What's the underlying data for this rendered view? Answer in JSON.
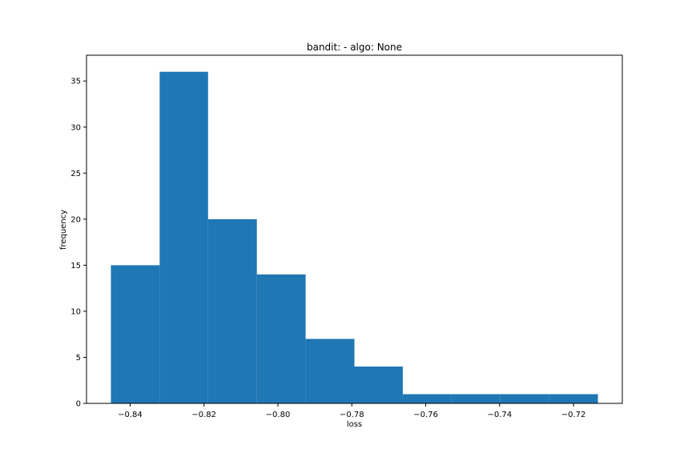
{
  "chart_data": {
    "type": "bar",
    "title": "bandit: - algo: None",
    "xlabel": "loss",
    "ylabel": "frequency",
    "bins": [
      {
        "x0": -0.8452,
        "x1": -0.832,
        "count": 15
      },
      {
        "x0": -0.832,
        "x1": -0.8189,
        "count": 36
      },
      {
        "x0": -0.8189,
        "x1": -0.8057,
        "count": 20
      },
      {
        "x0": -0.8057,
        "x1": -0.7925,
        "count": 14
      },
      {
        "x0": -0.7925,
        "x1": -0.7793,
        "count": 7
      },
      {
        "x0": -0.7793,
        "x1": -0.7662,
        "count": 4
      },
      {
        "x0": -0.7662,
        "x1": -0.753,
        "count": 1
      },
      {
        "x0": -0.753,
        "x1": -0.7398,
        "count": 1
      },
      {
        "x0": -0.7398,
        "x1": -0.7266,
        "count": 1
      },
      {
        "x0": -0.7266,
        "x1": -0.7134,
        "count": 1
      }
    ],
    "xlim": [
      -0.8518,
      -0.7068
    ],
    "ylim": [
      0,
      37.8
    ],
    "xticks": [
      -0.84,
      -0.82,
      -0.8,
      -0.78,
      -0.76,
      -0.74,
      -0.72
    ],
    "xtick_labels": [
      "−0.84",
      "−0.82",
      "−0.80",
      "−0.78",
      "−0.76",
      "−0.74",
      "−0.72"
    ],
    "yticks": [
      0,
      5,
      10,
      15,
      20,
      25,
      30,
      35
    ],
    "ytick_labels": [
      "0",
      "5",
      "10",
      "15",
      "20",
      "25",
      "30",
      "35"
    ],
    "bar_color": "#1f77b4",
    "grid": false,
    "legend": "none"
  }
}
